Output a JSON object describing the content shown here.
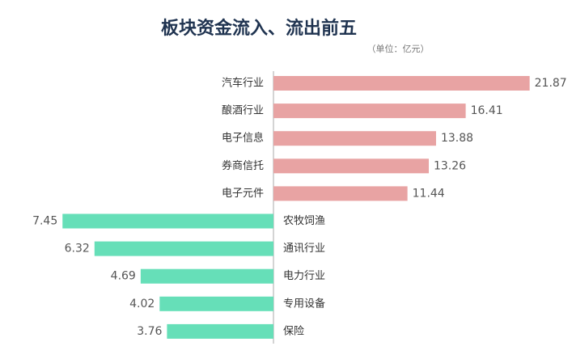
{
  "chart_data": {
    "type": "diverging-bar",
    "title": "板块资金流入、流出前五",
    "subtitle": "（单位：亿元）",
    "series": [
      {
        "categories": [
          "汽车行业",
          "酿酒行业",
          "电子信息",
          "券商信托",
          "电子元件"
        ],
        "values": [
          21.87,
          16.41,
          13.88,
          13.26,
          11.44
        ],
        "color": "#e8a3a3",
        "xlim": [
          0,
          23
        ]
      },
      {
        "categories": [
          "农牧饲渔",
          "通讯行业",
          "电力行业",
          "专用设备",
          "保险"
        ],
        "values": [
          7.45,
          6.32,
          4.69,
          4.02,
          3.76
        ],
        "color": "#66dfb8",
        "xlim": [
          0,
          8
        ]
      }
    ]
  }
}
